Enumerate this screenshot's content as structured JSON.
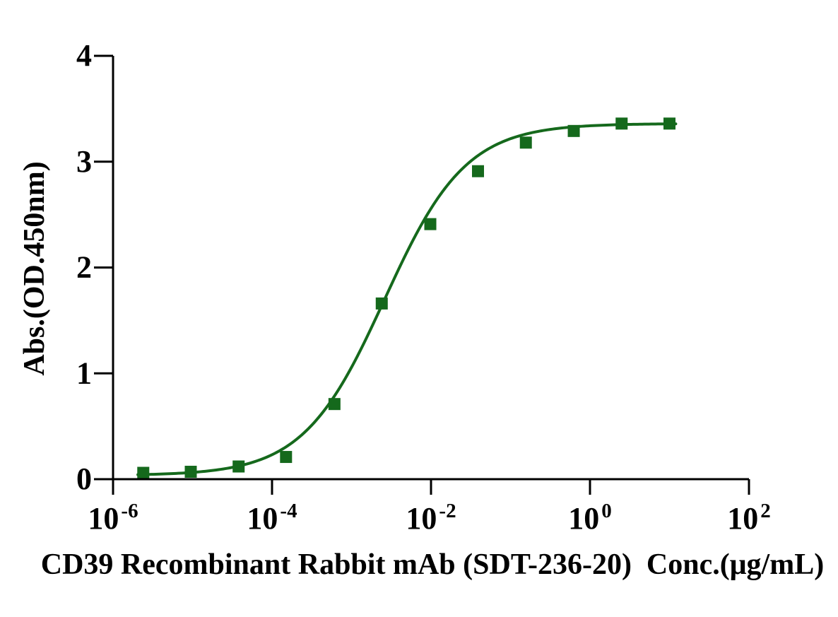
{
  "chart_data": {
    "type": "scatter",
    "title": "",
    "xlabel": "CD39 Recombinant Rabbit mAb (SDT-236-20)  Conc.(μg/mL)",
    "ylabel": "Abs.(OD.450nm)",
    "x_scale": "log10",
    "xlim": [
      1e-06,
      100
    ],
    "ylim": [
      0,
      4
    ],
    "x_tick_base": "10",
    "x_tick_exponents": [
      "-6",
      "-4",
      "-2",
      "0",
      "2"
    ],
    "y_ticks": [
      "0",
      "1",
      "2",
      "3",
      "4"
    ],
    "grid": "off",
    "legend": "none",
    "axis_color": "#000000",
    "series": [
      {
        "name": "CD39 Recombinant Rabbit mAb (SDT-236-20)",
        "marker": "square",
        "marker_size_px": 17,
        "color": "#15691c",
        "points": [
          {
            "x": 2.4e-06,
            "y": 0.06
          },
          {
            "x": 9.5e-06,
            "y": 0.07
          },
          {
            "x": 3.8e-05,
            "y": 0.12
          },
          {
            "x": 0.00015,
            "y": 0.21
          },
          {
            "x": 0.00061,
            "y": 0.71
          },
          {
            "x": 0.0024,
            "y": 1.66
          },
          {
            "x": 0.0098,
            "y": 2.41
          },
          {
            "x": 0.039,
            "y": 2.91
          },
          {
            "x": 0.156,
            "y": 3.18
          },
          {
            "x": 0.625,
            "y": 3.29
          },
          {
            "x": 2.5,
            "y": 3.36
          },
          {
            "x": 10,
            "y": 3.36
          }
        ]
      }
    ],
    "fit_curve": {
      "model": "4PL",
      "bottom": 0.035,
      "top": 3.36,
      "ec50": 0.0026,
      "hill": 0.85,
      "draw_range": [
        2.05e-06,
        12
      ]
    }
  }
}
